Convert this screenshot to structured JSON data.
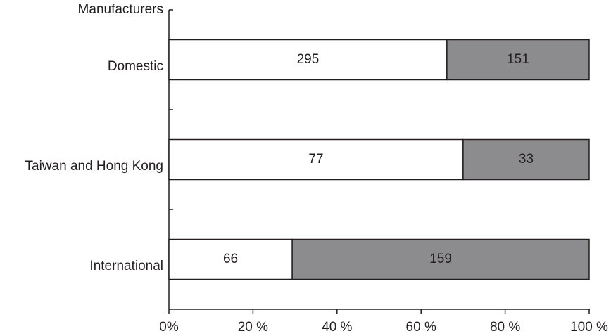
{
  "chart_data": {
    "type": "bar",
    "orientation": "horizontal",
    "stacking": "percent",
    "y_axis_title": "Manufacturers",
    "categories": [
      "Domestic",
      "Taiwan and Hong Kong",
      "International"
    ],
    "series": [
      {
        "color": "#ffffff",
        "values": [
          295,
          77,
          66
        ]
      },
      {
        "color": "#8c8c8e",
        "values": [
          151,
          33,
          159
        ]
      }
    ],
    "xlim": [
      0,
      100
    ],
    "xticks": [
      {
        "value": 0,
        "label": "0%"
      },
      {
        "value": 20,
        "label": "20 %"
      },
      {
        "value": 40,
        "label": "40 %"
      },
      {
        "value": 60,
        "label": "60 %"
      },
      {
        "value": 80,
        "label": "80 %"
      },
      {
        "value": 100,
        "label": "100 %"
      }
    ]
  }
}
